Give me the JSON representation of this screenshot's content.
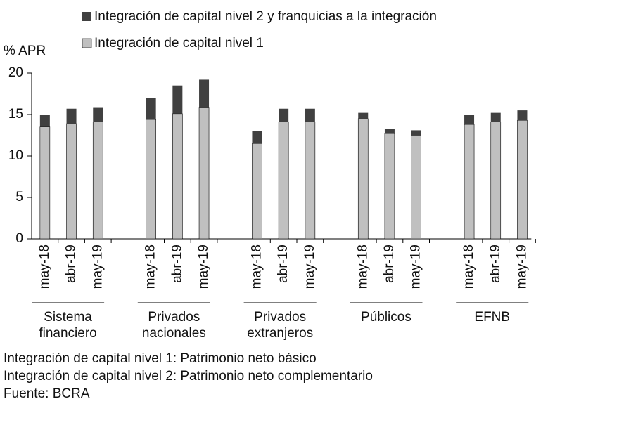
{
  "chart_data": {
    "type": "stacked-bar",
    "y_label": "% APR",
    "categories": [
      "may-18",
      "abr-19",
      "may-19",
      "may-18",
      "abr-19",
      "may-19",
      "may-18",
      "abr-19",
      "may-19",
      "may-18",
      "abr-19",
      "may-19",
      "may-18",
      "abr-19",
      "may-19"
    ],
    "groups": [
      "Sistema financiero",
      "Privados nacionales",
      "Privados extranjeros",
      "Públicos",
      "EFNB"
    ],
    "series": [
      {
        "name": "Integración de capital nivel 1",
        "color": "#c0c0c0",
        "values": [
          13.5,
          13.9,
          14.1,
          14.4,
          15.1,
          15.8,
          11.5,
          14.1,
          14.1,
          14.5,
          12.7,
          12.5,
          13.8,
          14.1,
          14.3
        ]
      },
      {
        "name": "Integración de capital nivel 2 y franquicias a la integración",
        "color": "#404040",
        "values": [
          1.5,
          1.8,
          1.7,
          2.6,
          3.4,
          3.4,
          1.5,
          1.6,
          1.6,
          0.7,
          0.6,
          0.6,
          1.2,
          1.1,
          1.2
        ]
      }
    ],
    "ylim": [
      0,
      20
    ],
    "yticks": [
      0,
      5,
      10,
      15,
      20
    ],
    "notes": [
      "Integración de capital nivel 1: Patrimonio neto básico",
      "Integración de capital nivel 2: Patrimonio neto complementario",
      "Fuente: BCRA"
    ]
  }
}
